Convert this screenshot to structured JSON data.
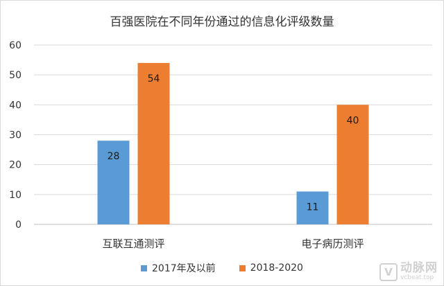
{
  "chart_data": {
    "type": "bar",
    "title": "百强医院在不同年份通过的信息化评级数量",
    "categories": [
      "互联互通测评",
      "电子病历测评"
    ],
    "series": [
      {
        "name": "2017年及以前",
        "values": [
          28,
          11
        ],
        "color": "#5b9bd5"
      },
      {
        "name": "2018-2020",
        "values": [
          54,
          40
        ],
        "color": "#ed7d31"
      }
    ],
    "ylim": [
      0,
      60
    ],
    "yticks": [
      0,
      10,
      20,
      30,
      40,
      50,
      60
    ],
    "xlabel": "",
    "ylabel": "",
    "grid": true,
    "legend_position": "bottom",
    "data_labels": true
  },
  "watermark": {
    "logo_glyph": "V",
    "brand": "动脉网",
    "url": "vcbeat.top"
  }
}
